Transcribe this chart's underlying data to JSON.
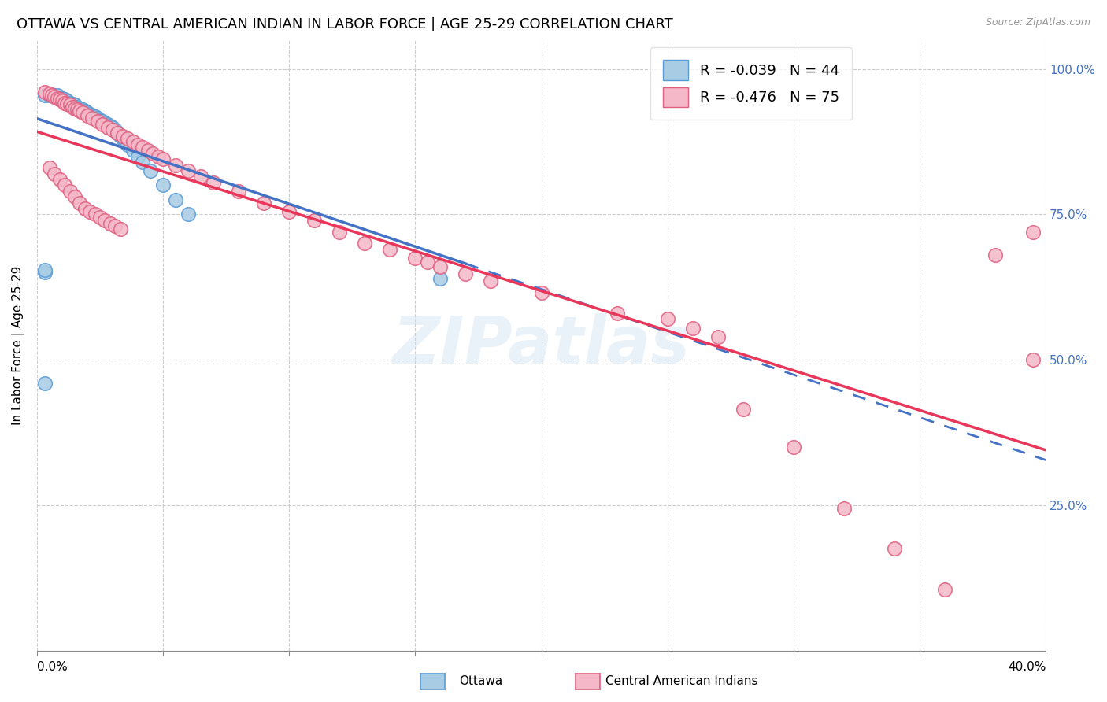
{
  "title": "OTTAWA VS CENTRAL AMERICAN INDIAN IN LABOR FORCE | AGE 25-29 CORRELATION CHART",
  "source": "Source: ZipAtlas.com",
  "ylabel": "In Labor Force | Age 25-29",
  "xlim": [
    0.0,
    0.4
  ],
  "ylim": [
    0.0,
    1.05
  ],
  "r_ottawa": -0.039,
  "r_central": -0.476,
  "n_ottawa": 44,
  "n_central": 75,
  "color_ottawa_fill": "#a8cce4",
  "color_ottawa_edge": "#5b9bd5",
  "color_central_fill": "#f4b8c8",
  "color_central_edge": "#e06080",
  "color_ottawa_line": "#4472c4",
  "color_central_line": "#e8375a",
  "background_color": "#ffffff",
  "grid_color": "#cccccc",
  "watermark_text": "ZIPatlas",
  "title_fontsize": 13,
  "axis_label_fontsize": 11,
  "tick_fontsize": 11,
  "ottawa_x": [
    0.003,
    0.005,
    0.006,
    0.007,
    0.008,
    0.009,
    0.01,
    0.011,
    0.012,
    0.013,
    0.014,
    0.015,
    0.016,
    0.017,
    0.018,
    0.019,
    0.02,
    0.021,
    0.022,
    0.023,
    0.024,
    0.025,
    0.026,
    0.027,
    0.028,
    0.029,
    0.03,
    0.031,
    0.032,
    0.033,
    0.034,
    0.035,
    0.036,
    0.038,
    0.04,
    0.042,
    0.045,
    0.05,
    0.055,
    0.06,
    0.003,
    0.16,
    0.003,
    0.003
  ],
  "ottawa_y": [
    0.955,
    0.955,
    0.955,
    0.955,
    0.955,
    0.95,
    0.95,
    0.948,
    0.945,
    0.942,
    0.94,
    0.938,
    0.935,
    0.932,
    0.93,
    0.928,
    0.925,
    0.922,
    0.92,
    0.918,
    0.915,
    0.912,
    0.91,
    0.908,
    0.905,
    0.902,
    0.9,
    0.895,
    0.89,
    0.885,
    0.88,
    0.875,
    0.87,
    0.86,
    0.85,
    0.84,
    0.825,
    0.8,
    0.775,
    0.75,
    0.46,
    0.64,
    0.65,
    0.655
  ],
  "central_x": [
    0.003,
    0.005,
    0.006,
    0.007,
    0.008,
    0.009,
    0.01,
    0.011,
    0.012,
    0.013,
    0.014,
    0.015,
    0.016,
    0.017,
    0.018,
    0.02,
    0.022,
    0.024,
    0.026,
    0.028,
    0.03,
    0.032,
    0.034,
    0.036,
    0.038,
    0.04,
    0.042,
    0.044,
    0.046,
    0.048,
    0.05,
    0.055,
    0.06,
    0.065,
    0.07,
    0.08,
    0.09,
    0.1,
    0.11,
    0.12,
    0.13,
    0.14,
    0.15,
    0.155,
    0.16,
    0.17,
    0.005,
    0.007,
    0.009,
    0.011,
    0.013,
    0.015,
    0.017,
    0.019,
    0.021,
    0.023,
    0.025,
    0.027,
    0.029,
    0.031,
    0.033,
    0.25,
    0.26,
    0.27,
    0.28,
    0.3,
    0.32,
    0.34,
    0.36,
    0.38,
    0.395,
    0.23,
    0.2,
    0.18,
    0.395
  ],
  "central_y": [
    0.96,
    0.958,
    0.955,
    0.952,
    0.95,
    0.948,
    0.945,
    0.942,
    0.94,
    0.938,
    0.935,
    0.932,
    0.93,
    0.928,
    0.925,
    0.92,
    0.915,
    0.91,
    0.905,
    0.9,
    0.895,
    0.89,
    0.885,
    0.88,
    0.875,
    0.87,
    0.865,
    0.86,
    0.855,
    0.85,
    0.845,
    0.835,
    0.825,
    0.815,
    0.805,
    0.79,
    0.77,
    0.755,
    0.74,
    0.72,
    0.7,
    0.69,
    0.675,
    0.668,
    0.66,
    0.648,
    0.83,
    0.82,
    0.81,
    0.8,
    0.79,
    0.78,
    0.77,
    0.76,
    0.755,
    0.75,
    0.745,
    0.74,
    0.735,
    0.73,
    0.725,
    0.57,
    0.555,
    0.54,
    0.415,
    0.35,
    0.245,
    0.175,
    0.105,
    0.68,
    0.5,
    0.58,
    0.615,
    0.635,
    0.72
  ]
}
